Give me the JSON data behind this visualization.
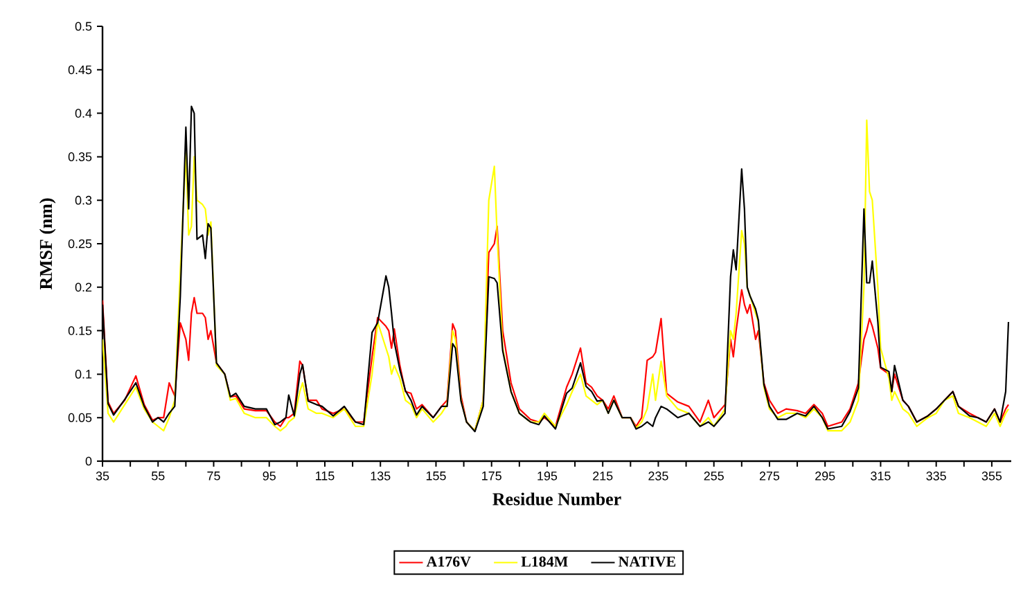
{
  "chart_data": {
    "type": "line",
    "xlabel": "Residue Number",
    "ylabel": "RMSF (nm)",
    "x": [
      35,
      37,
      39,
      43,
      47,
      50,
      53,
      55,
      57,
      59,
      61,
      63,
      65,
      66,
      67,
      68,
      69,
      71,
      72,
      73,
      74,
      76,
      79,
      81,
      83,
      86,
      90,
      94,
      97,
      99,
      101,
      102,
      104,
      106,
      107,
      109,
      112,
      114,
      118,
      122,
      126,
      129,
      132,
      134,
      137,
      138,
      139,
      140,
      142,
      144,
      146,
      148,
      150,
      154,
      157,
      159,
      161,
      162,
      164,
      166,
      169,
      172,
      174,
      176,
      177,
      179,
      182,
      185,
      189,
      192,
      194,
      198,
      202,
      204,
      207,
      209,
      211,
      213,
      215,
      217,
      219,
      222,
      225,
      227,
      229,
      231,
      233,
      234,
      236,
      238,
      242,
      246,
      250,
      253,
      255,
      259,
      261,
      262,
      263,
      265,
      266,
      267,
      268,
      270,
      271,
      273,
      275,
      278,
      281,
      285,
      288,
      291,
      294,
      296,
      301,
      304,
      307,
      309,
      310,
      311,
      312,
      314,
      315,
      318,
      319,
      320,
      323,
      325,
      328,
      332,
      335,
      338,
      341,
      343,
      347,
      350,
      353,
      356,
      358,
      360,
      361
    ],
    "series": [
      {
        "name": "A176V",
        "color": "#ff0000",
        "values": [
          0.185,
          0.068,
          0.055,
          0.07,
          0.098,
          0.065,
          0.047,
          0.05,
          0.05,
          0.09,
          0.075,
          0.159,
          0.14,
          0.116,
          0.17,
          0.188,
          0.17,
          0.17,
          0.165,
          0.14,
          0.15,
          0.113,
          0.1,
          0.074,
          0.075,
          0.06,
          0.058,
          0.058,
          0.045,
          0.04,
          0.05,
          0.05,
          0.055,
          0.115,
          0.11,
          0.07,
          0.07,
          0.06,
          0.055,
          0.06,
          0.045,
          0.045,
          0.12,
          0.165,
          0.155,
          0.15,
          0.13,
          0.152,
          0.11,
          0.08,
          0.078,
          0.06,
          0.065,
          0.05,
          0.063,
          0.07,
          0.158,
          0.15,
          0.075,
          0.045,
          0.035,
          0.07,
          0.24,
          0.25,
          0.27,
          0.15,
          0.09,
          0.06,
          0.048,
          0.045,
          0.05,
          0.04,
          0.085,
          0.1,
          0.13,
          0.09,
          0.085,
          0.075,
          0.07,
          0.06,
          0.075,
          0.05,
          0.05,
          0.04,
          0.05,
          0.116,
          0.12,
          0.125,
          0.164,
          0.078,
          0.068,
          0.063,
          0.045,
          0.07,
          0.05,
          0.065,
          0.14,
          0.12,
          0.15,
          0.197,
          0.18,
          0.17,
          0.18,
          0.14,
          0.15,
          0.09,
          0.07,
          0.055,
          0.06,
          0.058,
          0.055,
          0.065,
          0.055,
          0.04,
          0.045,
          0.06,
          0.09,
          0.14,
          0.15,
          0.164,
          0.155,
          0.13,
          0.107,
          0.1,
          0.08,
          0.1,
          0.07,
          0.063,
          0.045,
          0.052,
          0.06,
          0.07,
          0.08,
          0.063,
          0.055,
          0.05,
          0.045,
          0.06,
          0.045,
          0.06,
          0.065
        ]
      },
      {
        "name": "L184M",
        "color": "#ffff00",
        "values": [
          0.14,
          0.055,
          0.045,
          0.065,
          0.085,
          0.06,
          0.045,
          0.04,
          0.035,
          0.05,
          0.07,
          0.22,
          0.355,
          0.26,
          0.27,
          0.35,
          0.3,
          0.295,
          0.29,
          0.26,
          0.275,
          0.11,
          0.1,
          0.07,
          0.072,
          0.055,
          0.05,
          0.05,
          0.04,
          0.035,
          0.04,
          0.045,
          0.05,
          0.08,
          0.09,
          0.06,
          0.055,
          0.055,
          0.05,
          0.06,
          0.04,
          0.04,
          0.1,
          0.16,
          0.13,
          0.12,
          0.1,
          0.11,
          0.095,
          0.07,
          0.065,
          0.05,
          0.06,
          0.045,
          0.055,
          0.065,
          0.15,
          0.14,
          0.07,
          0.045,
          0.035,
          0.07,
          0.3,
          0.339,
          0.26,
          0.13,
          0.08,
          0.055,
          0.045,
          0.045,
          0.055,
          0.04,
          0.065,
          0.08,
          0.1,
          0.075,
          0.07,
          0.065,
          0.07,
          0.055,
          0.07,
          0.05,
          0.05,
          0.038,
          0.045,
          0.06,
          0.1,
          0.07,
          0.115,
          0.075,
          0.06,
          0.055,
          0.04,
          0.05,
          0.04,
          0.06,
          0.15,
          0.14,
          0.17,
          0.265,
          0.25,
          0.2,
          0.19,
          0.17,
          0.16,
          0.085,
          0.06,
          0.05,
          0.055,
          0.055,
          0.05,
          0.06,
          0.05,
          0.035,
          0.035,
          0.045,
          0.07,
          0.2,
          0.392,
          0.31,
          0.3,
          0.2,
          0.13,
          0.095,
          0.07,
          0.08,
          0.06,
          0.055,
          0.04,
          0.05,
          0.055,
          0.07,
          0.075,
          0.055,
          0.05,
          0.045,
          0.04,
          0.055,
          0.04,
          0.055,
          0.06
        ]
      },
      {
        "name": "NATIVE",
        "color": "#000000",
        "values": [
          0.18,
          0.066,
          0.053,
          0.071,
          0.09,
          0.063,
          0.045,
          0.05,
          0.045,
          0.055,
          0.063,
          0.19,
          0.384,
          0.29,
          0.408,
          0.4,
          0.255,
          0.26,
          0.233,
          0.273,
          0.268,
          0.113,
          0.1,
          0.074,
          0.078,
          0.063,
          0.06,
          0.06,
          0.042,
          0.045,
          0.05,
          0.076,
          0.052,
          0.1,
          0.111,
          0.069,
          0.065,
          0.063,
          0.052,
          0.063,
          0.045,
          0.042,
          0.148,
          0.159,
          0.213,
          0.2,
          0.17,
          0.137,
          0.105,
          0.081,
          0.07,
          0.053,
          0.063,
          0.05,
          0.063,
          0.063,
          0.135,
          0.13,
          0.069,
          0.045,
          0.034,
          0.063,
          0.212,
          0.21,
          0.205,
          0.127,
          0.08,
          0.055,
          0.045,
          0.042,
          0.052,
          0.037,
          0.078,
          0.084,
          0.113,
          0.086,
          0.08,
          0.069,
          0.07,
          0.055,
          0.07,
          0.05,
          0.05,
          0.037,
          0.04,
          0.045,
          0.04,
          0.05,
          0.063,
          0.06,
          0.05,
          0.055,
          0.04,
          0.045,
          0.04,
          0.055,
          0.212,
          0.243,
          0.22,
          0.336,
          0.29,
          0.2,
          0.19,
          0.175,
          0.162,
          0.088,
          0.063,
          0.048,
          0.048,
          0.055,
          0.052,
          0.063,
          0.05,
          0.037,
          0.04,
          0.057,
          0.084,
          0.29,
          0.205,
          0.205,
          0.23,
          0.16,
          0.108,
          0.103,
          0.08,
          0.11,
          0.07,
          0.063,
          0.045,
          0.052,
          0.06,
          0.07,
          0.08,
          0.063,
          0.052,
          0.05,
          0.045,
          0.06,
          0.045,
          0.08,
          0.16
        ]
      }
    ],
    "xlim": [
      35,
      362
    ],
    "xticks": [
      35,
      {
        "value": 45,
        "label": null
      },
      55,
      {
        "value": 65,
        "label": null
      },
      75,
      {
        "value": 85,
        "label": null
      },
      95,
      {
        "value": 105,
        "label": null
      },
      115,
      {
        "value": 125,
        "label": null
      },
      135,
      {
        "value": 145,
        "label": null
      },
      155,
      {
        "value": 165,
        "label": null
      },
      175,
      {
        "value": 185,
        "label": null
      },
      195,
      {
        "value": 205,
        "label": null
      },
      215,
      {
        "value": 225,
        "label": null
      },
      235,
      {
        "value": 245,
        "label": null
      },
      255,
      {
        "value": 265,
        "label": null
      },
      275,
      {
        "value": 285,
        "label": null
      },
      295,
      {
        "value": 305,
        "label": null
      },
      315,
      {
        "value": 325,
        "label": null
      },
      335,
      {
        "value": 345,
        "label": null
      },
      355
    ],
    "ylim": [
      0,
      0.5
    ],
    "yticks": [
      0,
      0.05,
      0.1,
      0.15,
      0.2,
      0.25,
      0.3,
      0.35,
      0.4,
      0.45,
      0.5
    ],
    "grid": false,
    "legend": "bottom",
    "marker": "none",
    "line_style": "solid"
  }
}
